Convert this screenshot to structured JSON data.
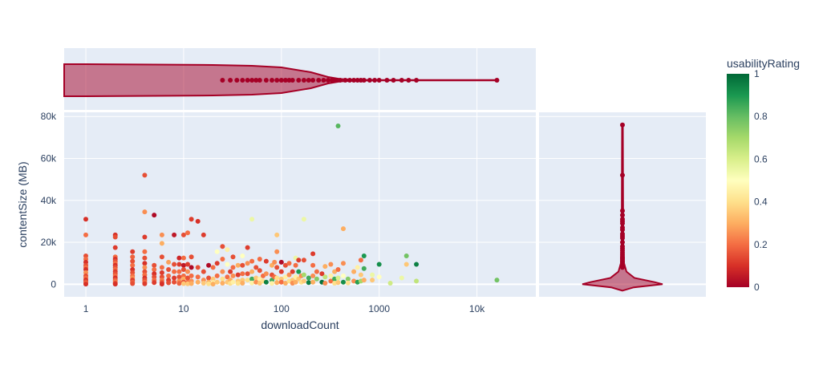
{
  "chart_data": {
    "type": "scatter",
    "xlabel": "downloadCount",
    "ylabel": "contentSize (MB)",
    "x_scale": "log",
    "xlim": [
      0.6,
      40000
    ],
    "ylim": [
      -6000,
      82000
    ],
    "x_ticks": [
      {
        "value": 1,
        "label": "1"
      },
      {
        "value": 10,
        "label": "10"
      },
      {
        "value": 100,
        "label": "100"
      },
      {
        "value": 1000,
        "label": "1000"
      },
      {
        "value": 10000,
        "label": "10k"
      }
    ],
    "y_ticks": [
      {
        "value": 0,
        "label": "0"
      },
      {
        "value": 20000,
        "label": "20k"
      },
      {
        "value": 40000,
        "label": "40k"
      },
      {
        "value": 60000,
        "label": "60k"
      },
      {
        "value": 80000,
        "label": "80k"
      }
    ],
    "grid": true,
    "colorbar": {
      "title": "usabilityRating",
      "range": [
        0,
        1
      ],
      "colorscale": "RdYlGn",
      "ticks": [
        {
          "value": 0,
          "label": "0"
        },
        {
          "value": 0.2,
          "label": "0.2"
        },
        {
          "value": 0.4,
          "label": "0.4"
        },
        {
          "value": 0.6,
          "label": "0.6"
        },
        {
          "value": 0.8,
          "label": "0.8"
        },
        {
          "value": 1,
          "label": "1"
        }
      ]
    },
    "marginal_x": "violin",
    "marginal_y": "violin",
    "violin_color": "#a50026",
    "marginal_x_points": [
      25,
      30,
      35,
      40,
      45,
      50,
      55,
      60,
      70,
      80,
      90,
      100,
      110,
      120,
      130,
      150,
      170,
      190,
      210,
      240,
      270,
      300,
      330,
      360,
      400,
      450,
      500,
      550,
      600,
      650,
      700,
      800,
      900,
      1000,
      1200,
      1400,
      1700,
      2000,
      2400,
      16000
    ],
    "marginal_y_points": [
      76000,
      52000,
      35000,
      33000,
      31000,
      30000,
      29000,
      27000,
      26000,
      24000,
      23000,
      22000,
      20000,
      18000,
      17000,
      16000,
      15000,
      14000,
      13000,
      12500,
      12000,
      11000,
      10500,
      10000,
      9500,
      9000,
      8500,
      8000
    ],
    "points": [
      [
        1,
        31000,
        0.1
      ],
      [
        1,
        23500,
        0.2
      ],
      [
        1,
        13500,
        0.15
      ],
      [
        1,
        12000,
        0.2
      ],
      [
        1,
        10500,
        0.1
      ],
      [
        1,
        9000,
        0.15
      ],
      [
        1,
        8000,
        0.2
      ],
      [
        1,
        7000,
        0.1
      ],
      [
        1,
        5500,
        0.25
      ],
      [
        1,
        4000,
        0.15
      ],
      [
        1,
        3000,
        0.2
      ],
      [
        1,
        2000,
        0.1
      ],
      [
        1,
        1200,
        0.15
      ],
      [
        1,
        500,
        0.2
      ],
      [
        1,
        100,
        0.1
      ],
      [
        2,
        23500,
        0.1
      ],
      [
        2,
        22500,
        0.15
      ],
      [
        2,
        17500,
        0.12
      ],
      [
        2,
        13000,
        0.2
      ],
      [
        2,
        12000,
        0.1
      ],
      [
        2,
        11000,
        0.15
      ],
      [
        2,
        10000,
        0.2
      ],
      [
        2,
        9000,
        0.1
      ],
      [
        2,
        8000,
        0.15
      ],
      [
        2,
        7000,
        0.2
      ],
      [
        2,
        6000,
        0.12
      ],
      [
        2,
        5000,
        0.15
      ],
      [
        2,
        4000,
        0.2
      ],
      [
        2,
        3000,
        0.1
      ],
      [
        2,
        2000,
        0.18
      ],
      [
        2,
        1200,
        0.22
      ],
      [
        2,
        500,
        0.15
      ],
      [
        2,
        100,
        0.1
      ],
      [
        3,
        15500,
        0.12
      ],
      [
        3,
        13000,
        0.18
      ],
      [
        3,
        11000,
        0.15
      ],
      [
        3,
        9000,
        0.2
      ],
      [
        3,
        7000,
        0.1
      ],
      [
        3,
        5500,
        0.15
      ],
      [
        3,
        4000,
        0.2
      ],
      [
        3,
        3000,
        0.25
      ],
      [
        3,
        2000,
        0.12
      ],
      [
        3,
        1000,
        0.18
      ],
      [
        3,
        300,
        0.15
      ],
      [
        4,
        52000,
        0.15
      ],
      [
        4,
        34500,
        0.25
      ],
      [
        4,
        22500,
        0.12
      ],
      [
        4,
        15500,
        0.2
      ],
      [
        4,
        12500,
        0.15
      ],
      [
        4,
        10000,
        0.1
      ],
      [
        4,
        8000,
        0.25
      ],
      [
        4,
        6000,
        0.15
      ],
      [
        4,
        4500,
        0.2
      ],
      [
        4,
        3000,
        0.1
      ],
      [
        4,
        2000,
        0.15
      ],
      [
        4,
        1000,
        0.2
      ],
      [
        4,
        200,
        0.12
      ],
      [
        5,
        33000,
        0.02
      ],
      [
        5,
        9000,
        0.15
      ],
      [
        5,
        7000,
        0.2
      ],
      [
        5,
        5000,
        0.1
      ],
      [
        5,
        3500,
        0.15
      ],
      [
        5,
        2000,
        0.2
      ],
      [
        5,
        800,
        0.12
      ],
      [
        6,
        23500,
        0.25
      ],
      [
        6,
        19500,
        0.3
      ],
      [
        6,
        13000,
        0.15
      ],
      [
        6,
        8000,
        0.2
      ],
      [
        6,
        5500,
        0.12
      ],
      [
        6,
        3500,
        0.15
      ],
      [
        6,
        2000,
        0.22
      ],
      [
        6,
        800,
        0.15
      ],
      [
        6,
        100,
        0.1
      ],
      [
        7,
        10500,
        0.28
      ],
      [
        7,
        7000,
        0.15
      ],
      [
        7,
        4000,
        0.2
      ],
      [
        7,
        2000,
        0.12
      ],
      [
        7,
        700,
        0.15
      ],
      [
        8,
        23500,
        0.05
      ],
      [
        8,
        9500,
        0.15
      ],
      [
        8,
        6000,
        0.2
      ],
      [
        8,
        3000,
        0.12
      ],
      [
        8,
        1000,
        0.15
      ],
      [
        9,
        12500,
        0.08
      ],
      [
        9,
        9500,
        0.12
      ],
      [
        9,
        6000,
        0.2
      ],
      [
        9,
        3500,
        0.15
      ],
      [
        9,
        1500,
        0.25
      ],
      [
        9,
        400,
        0.18
      ],
      [
        10,
        23500,
        0.15
      ],
      [
        10,
        12500,
        0.2
      ],
      [
        10,
        9000,
        0.05
      ],
      [
        10,
        7000,
        0.15
      ],
      [
        10,
        4000,
        0.2
      ],
      [
        10,
        2500,
        0.3
      ],
      [
        10,
        1000,
        0.15
      ],
      [
        10,
        300,
        0.35
      ],
      [
        11,
        24500,
        0.2
      ],
      [
        11,
        9500,
        0.12
      ],
      [
        11,
        6000,
        0.25
      ],
      [
        11,
        3000,
        0.15
      ],
      [
        11,
        1000,
        0.2
      ],
      [
        11,
        200,
        0.35
      ],
      [
        12,
        31000,
        0.12
      ],
      [
        12,
        13000,
        0.15
      ],
      [
        12,
        8000,
        0.02
      ],
      [
        12,
        4000,
        0.2
      ],
      [
        12,
        1500,
        0.25
      ],
      [
        12,
        300,
        0.3
      ],
      [
        14,
        30000,
        0.1
      ],
      [
        14,
        8000,
        0.15
      ],
      [
        14,
        3500,
        0.2
      ],
      [
        14,
        1000,
        0.3
      ],
      [
        16,
        23500,
        0.12
      ],
      [
        16,
        6000,
        0.15
      ],
      [
        16,
        2000,
        0.25
      ],
      [
        16,
        500,
        0.35
      ],
      [
        18,
        9000,
        0.02
      ],
      [
        18,
        3000,
        0.15
      ],
      [
        18,
        1000,
        0.3
      ],
      [
        18,
        200,
        0.4
      ],
      [
        20,
        8000,
        0.2
      ],
      [
        20,
        2500,
        0.35
      ],
      [
        20,
        800,
        0.45
      ],
      [
        20,
        100,
        0.3
      ],
      [
        22,
        15500,
        0.5
      ],
      [
        22,
        10000,
        0.12
      ],
      [
        22,
        4000,
        0.2
      ],
      [
        22,
        1000,
        0.35
      ],
      [
        25,
        18000,
        0.15
      ],
      [
        25,
        12000,
        0.2
      ],
      [
        25,
        6000,
        0.25
      ],
      [
        25,
        2500,
        0.4
      ],
      [
        25,
        500,
        0.3
      ],
      [
        28,
        16500,
        0.45
      ],
      [
        28,
        9500,
        0.5
      ],
      [
        28,
        3500,
        0.2
      ],
      [
        28,
        1000,
        0.35
      ],
      [
        30,
        6000,
        0.12
      ],
      [
        30,
        2000,
        0.3
      ],
      [
        30,
        400,
        0.4
      ],
      [
        32,
        13000,
        0.15
      ],
      [
        32,
        8000,
        0.2
      ],
      [
        32,
        4000,
        0.25
      ],
      [
        32,
        1000,
        0.45
      ],
      [
        36,
        9000,
        0.3
      ],
      [
        36,
        4500,
        0.12
      ],
      [
        36,
        1500,
        0.35
      ],
      [
        36,
        400,
        0.4
      ],
      [
        40,
        13500,
        0.5
      ],
      [
        40,
        9000,
        0.15
      ],
      [
        40,
        5000,
        0.2
      ],
      [
        40,
        2000,
        0.35
      ],
      [
        40,
        500,
        0.3
      ],
      [
        45,
        17500,
        0.12
      ],
      [
        45,
        10000,
        0.25
      ],
      [
        45,
        5000,
        0.15
      ],
      [
        45,
        2000,
        0.4
      ],
      [
        50,
        31000,
        0.55
      ],
      [
        50,
        11000,
        0.2
      ],
      [
        50,
        6000,
        0.3
      ],
      [
        50,
        2500,
        0.85
      ],
      [
        50,
        600,
        0.45
      ],
      [
        55,
        8000,
        0.15
      ],
      [
        55,
        3000,
        0.35
      ],
      [
        55,
        1000,
        0.25
      ],
      [
        60,
        12000,
        0.2
      ],
      [
        60,
        6500,
        0.15
      ],
      [
        60,
        2500,
        0.45
      ],
      [
        60,
        500,
        0.35
      ],
      [
        65,
        4000,
        0.2
      ],
      [
        65,
        1500,
        0.4
      ],
      [
        70,
        11000,
        0.12
      ],
      [
        70,
        5000,
        0.25
      ],
      [
        70,
        1000,
        0.95
      ],
      [
        80,
        9000,
        0.3
      ],
      [
        80,
        4500,
        0.15
      ],
      [
        80,
        2000,
        0.85
      ],
      [
        80,
        400,
        0.45
      ],
      [
        85,
        10500,
        0.25
      ],
      [
        85,
        3500,
        0.2
      ],
      [
        90,
        23500,
        0.35
      ],
      [
        90,
        15500,
        0.25
      ],
      [
        90,
        8000,
        0.15
      ],
      [
        90,
        3000,
        0.4
      ],
      [
        90,
        800,
        0.3
      ],
      [
        100,
        10500,
        0.02
      ],
      [
        100,
        6000,
        0.12
      ],
      [
        100,
        2500,
        0.35
      ],
      [
        100,
        1000,
        0.2
      ],
      [
        110,
        9000,
        0.15
      ],
      [
        110,
        3500,
        0.45
      ],
      [
        110,
        500,
        0.3
      ],
      [
        120,
        10000,
        0.2
      ],
      [
        120,
        4500,
        0.25
      ],
      [
        120,
        1500,
        0.4
      ],
      [
        130,
        6000,
        0.12
      ],
      [
        130,
        2000,
        0.35
      ],
      [
        130,
        500,
        0.25
      ],
      [
        140,
        12500,
        0.55
      ],
      [
        140,
        9000,
        0.2
      ],
      [
        140,
        3500,
        0.45
      ],
      [
        140,
        1000,
        0.3
      ],
      [
        150,
        11500,
        0.12
      ],
      [
        150,
        6000,
        0.9
      ],
      [
        150,
        2500,
        0.35
      ],
      [
        160,
        4000,
        0.25
      ],
      [
        160,
        1000,
        0.4
      ],
      [
        170,
        31000,
        0.55
      ],
      [
        170,
        11500,
        0.15
      ],
      [
        170,
        4500,
        0.7
      ],
      [
        170,
        1500,
        0.35
      ],
      [
        190,
        3000,
        0.85
      ],
      [
        190,
        800,
        0.95
      ],
      [
        210,
        14500,
        0.12
      ],
      [
        210,
        9000,
        0.2
      ],
      [
        210,
        4000,
        0.25
      ],
      [
        210,
        1000,
        0.3
      ],
      [
        230,
        6000,
        0.2
      ],
      [
        230,
        2500,
        0.75
      ],
      [
        260,
        5000,
        0.12
      ],
      [
        260,
        1000,
        0.98
      ],
      [
        280,
        8500,
        0.3
      ],
      [
        280,
        3500,
        0.65
      ],
      [
        280,
        500,
        0.25
      ],
      [
        320,
        9500,
        0.25
      ],
      [
        320,
        4000,
        0.45
      ],
      [
        320,
        1500,
        0.2
      ],
      [
        350,
        6000,
        0.3
      ],
      [
        350,
        2500,
        0.85
      ],
      [
        350,
        500,
        0.4
      ],
      [
        380,
        75500,
        0.82
      ],
      [
        380,
        7000,
        0.2
      ],
      [
        380,
        3000,
        0.6
      ],
      [
        380,
        800,
        0.35
      ],
      [
        430,
        26500,
        0.3
      ],
      [
        430,
        10000,
        0.25
      ],
      [
        430,
        4000,
        0.5
      ],
      [
        430,
        1000,
        0.92
      ],
      [
        480,
        2500,
        0.75
      ],
      [
        480,
        600,
        0.4
      ],
      [
        550,
        6000,
        0.3
      ],
      [
        550,
        1500,
        0.25
      ],
      [
        600,
        8000,
        0.45
      ],
      [
        600,
        1000,
        0.88
      ],
      [
        650,
        11500,
        0.2
      ],
      [
        650,
        4500,
        0.35
      ],
      [
        650,
        1500,
        0.7
      ],
      [
        700,
        13500,
        0.9
      ],
      [
        700,
        7500,
        0.85
      ],
      [
        700,
        2000,
        0.3
      ],
      [
        850,
        4500,
        0.55
      ],
      [
        850,
        2000,
        0.35
      ],
      [
        1000,
        9500,
        0.92
      ],
      [
        1000,
        3500,
        0.5
      ],
      [
        1300,
        500,
        0.62
      ],
      [
        1700,
        3000,
        0.55
      ],
      [
        1900,
        13500,
        0.78
      ],
      [
        1900,
        9500,
        0.35
      ],
      [
        2400,
        9500,
        0.95
      ],
      [
        2400,
        1500,
        0.65
      ],
      [
        16000,
        2000,
        0.78
      ]
    ]
  }
}
